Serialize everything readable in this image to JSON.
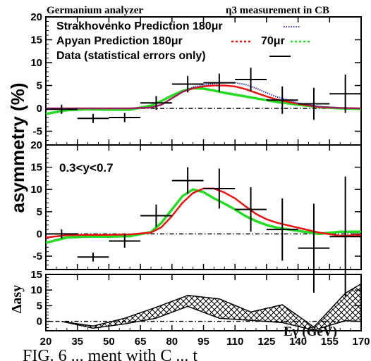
{
  "header": {
    "left": "Germanium analyzer",
    "right": "η3 measurement in CB"
  },
  "y_axis_label": "asymmetry (%)",
  "x_axis_label": "Eγ (GeV)",
  "caption_fragment": "FIG. 6 ... ment with C ... t",
  "colors": {
    "strakhovenko": "#3333cc",
    "apyan_180": "#ee1111",
    "apyan_70": "#22dd22",
    "data": "#000000"
  },
  "chart_data": [
    {
      "type": "line",
      "panel": "top",
      "xlim": [
        20,
        170
      ],
      "ylim": [
        -8,
        20
      ],
      "yticks": [
        -5,
        0,
        5,
        10,
        15,
        20
      ],
      "legend": [
        {
          "label": "Strakhovenko Prediction 180μr",
          "style": "dotted",
          "color": "#3333cc"
        },
        {
          "label": "Apyan Prediction 180μr",
          "style": "dashed",
          "color": "#ee1111"
        },
        {
          "label": "70μr",
          "style": "dashed",
          "color": "#22dd22"
        },
        {
          "label": "Data (statistical errors only)",
          "style": "solid",
          "color": "#000000"
        }
      ],
      "series": [
        {
          "name": "Strakhovenko Prediction 180μr",
          "x": [
            20,
            40,
            60,
            70,
            75,
            80,
            85,
            90,
            95,
            100,
            105,
            110,
            115,
            120,
            125,
            130,
            140,
            150,
            160,
            170
          ],
          "y": [
            0,
            0,
            0,
            0.2,
            0.8,
            2.2,
            3.6,
            4.6,
            5.1,
            5.4,
            5.6,
            5.6,
            5.2,
            4.4,
            3.4,
            2.5,
            1.2,
            0.4,
            0.1,
            0
          ]
        },
        {
          "name": "Apyan Prediction 180μr",
          "x": [
            20,
            40,
            60,
            70,
            75,
            80,
            85,
            90,
            95,
            100,
            105,
            110,
            115,
            120,
            125,
            130,
            140,
            150,
            160,
            170
          ],
          "y": [
            0,
            0,
            0,
            0.2,
            0.8,
            2.2,
            3.6,
            4.4,
            4.8,
            5.0,
            5.0,
            4.8,
            4.2,
            3.4,
            2.6,
            1.9,
            1.0,
            0.3,
            0.1,
            0
          ]
        },
        {
          "name": "70μr",
          "x": [
            20,
            30,
            40,
            50,
            60,
            70,
            75,
            80,
            85,
            90,
            95,
            100,
            105,
            110,
            115,
            120,
            125,
            130,
            140,
            150,
            160,
            170
          ],
          "y": [
            -1.2,
            -0.4,
            -0.2,
            -0.3,
            -0.3,
            0.6,
            1.6,
            2.8,
            3.8,
            4.4,
            4.3,
            3.9,
            3.4,
            3.0,
            2.6,
            2.2,
            1.8,
            1.4,
            0.8,
            0.3,
            0,
            -0.1
          ]
        },
        {
          "name": "Data (statistical errors only)",
          "x": [
            27.5,
            42.5,
            57.5,
            72.5,
            87.5,
            102.5,
            117.5,
            132.5,
            147.5,
            162.5
          ],
          "xerr": 7.5,
          "y": [
            -0.2,
            -2.2,
            -2.0,
            1.2,
            5.3,
            5.6,
            6.3,
            1.8,
            1.0,
            3.2
          ],
          "yerr": [
            1.0,
            1.0,
            1.0,
            1.5,
            1.8,
            2.0,
            2.6,
            3.0,
            3.5,
            4.2
          ]
        }
      ]
    },
    {
      "type": "line",
      "panel": "middle",
      "annotation": "0.3<y<0.7",
      "xlim": [
        20,
        170
      ],
      "ylim": [
        -8,
        20
      ],
      "yticks": [
        -5,
        0,
        5,
        10,
        15,
        20
      ],
      "series": [
        {
          "name": "Apyan Prediction 180μr",
          "x": [
            20,
            30,
            40,
            50,
            60,
            70,
            75,
            80,
            85,
            90,
            95,
            100,
            105,
            110,
            115,
            120,
            125,
            130,
            140,
            150,
            160,
            170
          ],
          "y": [
            -0.8,
            -0.3,
            -0.2,
            -0.2,
            -0.1,
            0.3,
            1.5,
            4.0,
            7.0,
            9.2,
            10.2,
            10.2,
            9.3,
            8.0,
            6.2,
            4.5,
            3.3,
            2.5,
            1.4,
            0.3,
            -0.4,
            -0.3
          ]
        },
        {
          "name": "70μr",
          "x": [
            20,
            30,
            40,
            50,
            60,
            70,
            75,
            80,
            85,
            90,
            95,
            100,
            105,
            110,
            115,
            120,
            125,
            130,
            140,
            150,
            160,
            170
          ],
          "y": [
            -2.0,
            -0.8,
            -0.6,
            -0.6,
            -0.5,
            0.4,
            2.5,
            5.5,
            8.5,
            10.0,
            9.4,
            8.0,
            6.8,
            5.5,
            4.0,
            2.9,
            2.0,
            1.4,
            0.7,
            0,
            0.5,
            0.5
          ]
        },
        {
          "name": "Data (statistical errors only)",
          "x": [
            27.5,
            42.5,
            57.5,
            72.5,
            87.5,
            102.5,
            117.5,
            132.5,
            147.5,
            162.5
          ],
          "xerr": 7.5,
          "y": [
            0,
            -5.2,
            -1.6,
            4.1,
            12.0,
            10.2,
            5.5,
            1.0,
            -3.2,
            -0.6
          ],
          "yerr": [
            1.0,
            1.0,
            1.5,
            2.5,
            3.0,
            4.5,
            5.0,
            7.0,
            10.0,
            13.5
          ]
        }
      ]
    },
    {
      "type": "area",
      "panel": "bottom",
      "ylabel": "Δasy",
      "xlim": [
        20,
        170
      ],
      "ylim": [
        -3,
        15
      ],
      "yticks": [
        0,
        5,
        10,
        15
      ],
      "xticks": [
        20,
        35,
        50,
        65,
        80,
        95,
        110,
        125,
        140,
        155,
        170
      ],
      "series": [
        {
          "name": "upper",
          "x": [
            27.5,
            42.5,
            57.5,
            72.5,
            87.5,
            102.5,
            117.5,
            132.5,
            147.5,
            162.5,
            170
          ],
          "y": [
            0,
            -1.5,
            1.0,
            4.5,
            8.3,
            7.2,
            3.0,
            5.3,
            -1.8,
            9.0,
            12.0
          ]
        },
        {
          "name": "lower",
          "x": [
            27.5,
            42.5,
            57.5,
            72.5,
            87.5,
            102.5,
            117.5,
            132.5,
            147.5,
            162.5,
            170
          ],
          "y": [
            0,
            -2.2,
            -0.8,
            1.0,
            4.8,
            1.0,
            0.3,
            -0.4,
            -2.8,
            0.2,
            0.0
          ]
        }
      ]
    }
  ]
}
